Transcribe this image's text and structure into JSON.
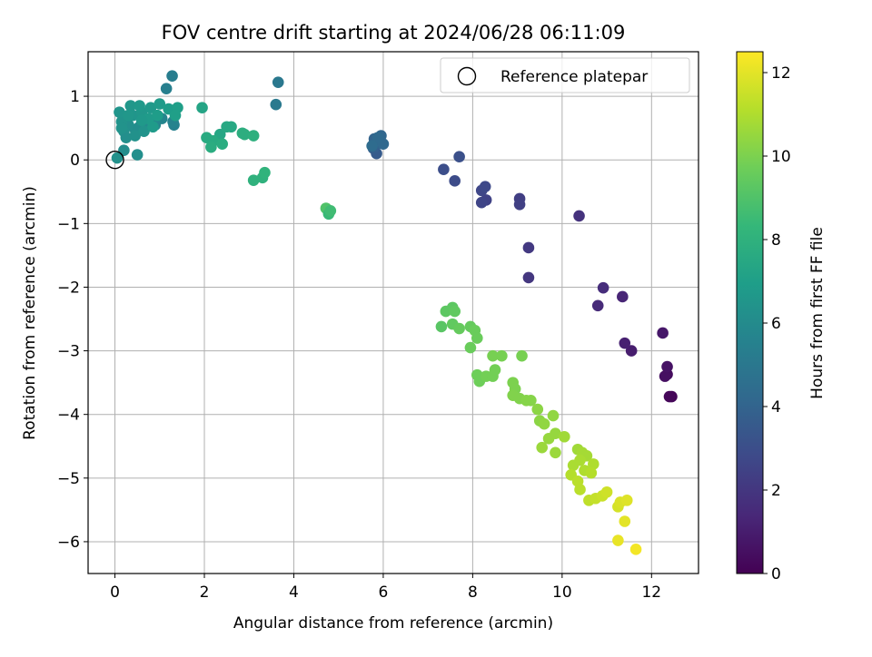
{
  "chart_data": {
    "type": "scatter",
    "title": "FOV centre drift starting at 2024/06/28 06:11:09",
    "xlabel": "Angular distance from reference (arcmin)",
    "ylabel": "Rotation from reference (arcmin)",
    "xlim": [
      -0.6,
      13.05
    ],
    "ylim": [
      -6.5,
      1.7
    ],
    "xticks": [
      0,
      2,
      4,
      6,
      8,
      10,
      12
    ],
    "xtick_labels": [
      "0",
      "2",
      "4",
      "6",
      "8",
      "10",
      "12"
    ],
    "yticks": [
      1,
      0,
      -1,
      -2,
      -3,
      -4,
      -5,
      -6
    ],
    "ytick_labels": [
      "1",
      "0",
      "−1",
      "−2",
      "−3",
      "−4",
      "−5",
      "−6"
    ],
    "grid": true,
    "legend": {
      "position": "top-right",
      "entries": [
        "Reference platepar"
      ]
    },
    "reference_point": {
      "x": 0,
      "y": 0,
      "label": "Reference platepar"
    },
    "colorbar": {
      "label": "Hours from first FF file",
      "colormap": "viridis",
      "range": [
        0,
        12.5
      ],
      "ticks": [
        0,
        2,
        4,
        6,
        8,
        10,
        12
      ],
      "tick_labels": [
        "0",
        "2",
        "4",
        "6",
        "8",
        "10",
        "12"
      ],
      "colors": [
        "#440154",
        "#482878",
        "#3e4989",
        "#31688e",
        "#26828e",
        "#1f9e89",
        "#35b779",
        "#6ece58",
        "#b5de2b",
        "#fde725"
      ]
    },
    "marker_color_by": "hours",
    "points": [
      {
        "x": 12.45,
        "y": -3.72,
        "h": 0.1
      },
      {
        "x": 12.4,
        "y": -3.72,
        "h": 0.2
      },
      {
        "x": 12.35,
        "y": -3.37,
        "h": 0.4
      },
      {
        "x": 12.3,
        "y": -3.4,
        "h": 0.5
      },
      {
        "x": 12.35,
        "y": -3.25,
        "h": 0.6
      },
      {
        "x": 12.25,
        "y": -2.72,
        "h": 0.8
      },
      {
        "x": 11.55,
        "y": -3.0,
        "h": 1.0
      },
      {
        "x": 11.4,
        "y": -2.88,
        "h": 1.1
      },
      {
        "x": 11.35,
        "y": -2.15,
        "h": 1.3
      },
      {
        "x": 10.8,
        "y": -2.29,
        "h": 1.5
      },
      {
        "x": 10.92,
        "y": -2.01,
        "h": 1.6
      },
      {
        "x": 10.38,
        "y": -0.88,
        "h": 1.8
      },
      {
        "x": 9.25,
        "y": -1.85,
        "h": 2.0
      },
      {
        "x": 9.25,
        "y": -1.38,
        "h": 2.1
      },
      {
        "x": 9.05,
        "y": -0.61,
        "h": 2.3
      },
      {
        "x": 9.05,
        "y": -0.7,
        "h": 2.4
      },
      {
        "x": 8.3,
        "y": -0.63,
        "h": 2.5
      },
      {
        "x": 8.2,
        "y": -0.67,
        "h": 2.6
      },
      {
        "x": 8.2,
        "y": -0.48,
        "h": 2.7
      },
      {
        "x": 8.28,
        "y": -0.42,
        "h": 2.8
      },
      {
        "x": 7.6,
        "y": -0.33,
        "h": 2.9
      },
      {
        "x": 7.35,
        "y": -0.15,
        "h": 3.0
      },
      {
        "x": 7.7,
        "y": 0.05,
        "h": 3.1
      },
      {
        "x": 5.85,
        "y": 0.1,
        "h": 3.6
      },
      {
        "x": 5.78,
        "y": 0.18,
        "h": 3.7
      },
      {
        "x": 5.82,
        "y": 0.22,
        "h": 3.8
      },
      {
        "x": 5.9,
        "y": 0.28,
        "h": 3.9
      },
      {
        "x": 5.8,
        "y": 0.33,
        "h": 4.0
      },
      {
        "x": 5.95,
        "y": 0.38,
        "h": 4.1
      },
      {
        "x": 6.0,
        "y": 0.25,
        "h": 4.2
      },
      {
        "x": 5.88,
        "y": 0.35,
        "h": 4.3
      },
      {
        "x": 5.75,
        "y": 0.22,
        "h": 4.4
      },
      {
        "x": 3.65,
        "y": 1.22,
        "h": 5.0
      },
      {
        "x": 3.6,
        "y": 0.87,
        "h": 5.1
      },
      {
        "x": 1.28,
        "y": 1.32,
        "h": 5.3
      },
      {
        "x": 1.15,
        "y": 1.12,
        "h": 5.4
      },
      {
        "x": 1.32,
        "y": 0.55,
        "h": 5.5
      },
      {
        "x": 1.3,
        "y": 0.6,
        "h": 5.6
      },
      {
        "x": 1.05,
        "y": 0.65,
        "h": 5.7
      },
      {
        "x": 0.9,
        "y": 0.55,
        "h": 5.8
      },
      {
        "x": 0.7,
        "y": 0.58,
        "h": 5.9
      },
      {
        "x": 0.55,
        "y": 0.52,
        "h": 6.0
      },
      {
        "x": 0.45,
        "y": 0.48,
        "h": 6.1
      },
      {
        "x": 0.3,
        "y": 0.55,
        "h": 6.2
      },
      {
        "x": 0.2,
        "y": 0.45,
        "h": 6.3
      },
      {
        "x": 0.15,
        "y": 0.6,
        "h": 6.4
      },
      {
        "x": 0.4,
        "y": 0.7,
        "h": 6.5
      },
      {
        "x": 0.6,
        "y": 0.75,
        "h": 6.6
      },
      {
        "x": 0.8,
        "y": 0.82,
        "h": 6.7
      },
      {
        "x": 1.0,
        "y": 0.88,
        "h": 6.8
      },
      {
        "x": 1.2,
        "y": 0.8,
        "h": 6.9
      },
      {
        "x": 1.4,
        "y": 0.82,
        "h": 7.0
      },
      {
        "x": 0.1,
        "y": 0.75,
        "h": 6.5
      },
      {
        "x": 0.35,
        "y": 0.85,
        "h": 6.6
      },
      {
        "x": 0.55,
        "y": 0.85,
        "h": 6.7
      },
      {
        "x": 0.25,
        "y": 0.35,
        "h": 6.2
      },
      {
        "x": 0.45,
        "y": 0.38,
        "h": 6.3
      },
      {
        "x": 0.65,
        "y": 0.45,
        "h": 6.4
      },
      {
        "x": 0.2,
        "y": 0.15,
        "h": 6.1
      },
      {
        "x": 0.5,
        "y": 0.08,
        "h": 6.2
      },
      {
        "x": 0.05,
        "y": 0.03,
        "h": 6.3
      },
      {
        "x": 0.75,
        "y": 0.65,
        "h": 6.8
      },
      {
        "x": 0.95,
        "y": 0.7,
        "h": 6.9
      },
      {
        "x": 1.35,
        "y": 0.7,
        "h": 7.0
      },
      {
        "x": 0.3,
        "y": 0.7,
        "h": 6.6
      },
      {
        "x": 0.15,
        "y": 0.5,
        "h": 6.4
      },
      {
        "x": 0.6,
        "y": 0.62,
        "h": 6.7
      },
      {
        "x": 0.85,
        "y": 0.52,
        "h": 6.8
      },
      {
        "x": 1.95,
        "y": 0.82,
        "h": 7.3
      },
      {
        "x": 2.35,
        "y": 0.4,
        "h": 7.4
      },
      {
        "x": 2.5,
        "y": 0.52,
        "h": 7.5
      },
      {
        "x": 2.6,
        "y": 0.52,
        "h": 7.5
      },
      {
        "x": 2.05,
        "y": 0.35,
        "h": 7.6
      },
      {
        "x": 2.2,
        "y": 0.3,
        "h": 7.6
      },
      {
        "x": 2.4,
        "y": 0.25,
        "h": 7.7
      },
      {
        "x": 2.15,
        "y": 0.2,
        "h": 7.7
      },
      {
        "x": 2.85,
        "y": 0.42,
        "h": 7.8
      },
      {
        "x": 2.9,
        "y": 0.4,
        "h": 7.8
      },
      {
        "x": 3.1,
        "y": 0.38,
        "h": 7.9
      },
      {
        "x": 3.1,
        "y": -0.32,
        "h": 8.0
      },
      {
        "x": 3.3,
        "y": -0.28,
        "h": 8.0
      },
      {
        "x": 3.35,
        "y": -0.2,
        "h": 8.1
      },
      {
        "x": 4.72,
        "y": -0.76,
        "h": 9.0
      },
      {
        "x": 4.78,
        "y": -0.85,
        "h": 8.4
      },
      {
        "x": 4.82,
        "y": -0.8,
        "h": 8.6
      },
      {
        "x": 7.3,
        "y": -2.62,
        "h": 9.2
      },
      {
        "x": 7.4,
        "y": -2.38,
        "h": 9.3
      },
      {
        "x": 7.55,
        "y": -2.32,
        "h": 9.3
      },
      {
        "x": 7.6,
        "y": -2.38,
        "h": 9.4
      },
      {
        "x": 7.55,
        "y": -2.58,
        "h": 9.4
      },
      {
        "x": 7.7,
        "y": -2.65,
        "h": 9.5
      },
      {
        "x": 7.95,
        "y": -2.62,
        "h": 9.5
      },
      {
        "x": 8.05,
        "y": -2.68,
        "h": 9.6
      },
      {
        "x": 8.1,
        "y": -2.8,
        "h": 9.6
      },
      {
        "x": 7.95,
        "y": -2.95,
        "h": 9.6
      },
      {
        "x": 8.1,
        "y": -3.38,
        "h": 9.7
      },
      {
        "x": 8.15,
        "y": -3.48,
        "h": 9.7
      },
      {
        "x": 8.3,
        "y": -3.4,
        "h": 9.8
      },
      {
        "x": 8.45,
        "y": -3.4,
        "h": 9.8
      },
      {
        "x": 8.5,
        "y": -3.3,
        "h": 9.8
      },
      {
        "x": 8.45,
        "y": -3.08,
        "h": 9.9
      },
      {
        "x": 8.65,
        "y": -3.08,
        "h": 9.9
      },
      {
        "x": 9.1,
        "y": -3.08,
        "h": 9.9
      },
      {
        "x": 8.9,
        "y": -3.5,
        "h": 10.0
      },
      {
        "x": 8.95,
        "y": -3.6,
        "h": 10.0
      },
      {
        "x": 8.9,
        "y": -3.7,
        "h": 10.1
      },
      {
        "x": 9.05,
        "y": -3.75,
        "h": 10.1
      },
      {
        "x": 9.2,
        "y": -3.78,
        "h": 10.2
      },
      {
        "x": 9.3,
        "y": -3.78,
        "h": 10.2
      },
      {
        "x": 9.45,
        "y": -3.92,
        "h": 10.3
      },
      {
        "x": 9.5,
        "y": -4.1,
        "h": 10.3
      },
      {
        "x": 9.6,
        "y": -4.15,
        "h": 10.4
      },
      {
        "x": 9.8,
        "y": -4.02,
        "h": 10.4
      },
      {
        "x": 9.85,
        "y": -4.3,
        "h": 10.5
      },
      {
        "x": 9.7,
        "y": -4.38,
        "h": 10.5
      },
      {
        "x": 9.55,
        "y": -4.52,
        "h": 10.6
      },
      {
        "x": 9.85,
        "y": -4.6,
        "h": 10.6
      },
      {
        "x": 10.05,
        "y": -4.35,
        "h": 10.7
      },
      {
        "x": 10.35,
        "y": -4.55,
        "h": 10.7
      },
      {
        "x": 10.45,
        "y": -4.6,
        "h": 10.8
      },
      {
        "x": 10.55,
        "y": -4.65,
        "h": 10.8
      },
      {
        "x": 10.4,
        "y": -4.72,
        "h": 10.9
      },
      {
        "x": 10.25,
        "y": -4.8,
        "h": 10.9
      },
      {
        "x": 10.5,
        "y": -4.88,
        "h": 11.0
      },
      {
        "x": 10.7,
        "y": -4.78,
        "h": 11.0
      },
      {
        "x": 10.65,
        "y": -4.92,
        "h": 11.1
      },
      {
        "x": 10.2,
        "y": -4.95,
        "h": 11.1
      },
      {
        "x": 10.35,
        "y": -5.05,
        "h": 11.2
      },
      {
        "x": 10.4,
        "y": -5.18,
        "h": 11.2
      },
      {
        "x": 10.6,
        "y": -5.35,
        "h": 11.3
      },
      {
        "x": 10.75,
        "y": -5.32,
        "h": 11.4
      },
      {
        "x": 10.9,
        "y": -5.28,
        "h": 11.5
      },
      {
        "x": 11.0,
        "y": -5.22,
        "h": 11.6
      },
      {
        "x": 11.25,
        "y": -5.45,
        "h": 11.7
      },
      {
        "x": 11.3,
        "y": -5.38,
        "h": 11.8
      },
      {
        "x": 11.45,
        "y": -5.35,
        "h": 11.9
      },
      {
        "x": 11.4,
        "y": -5.68,
        "h": 12.0
      },
      {
        "x": 11.25,
        "y": -5.98,
        "h": 12.1
      },
      {
        "x": 11.65,
        "y": -6.12,
        "h": 12.3
      }
    ]
  }
}
